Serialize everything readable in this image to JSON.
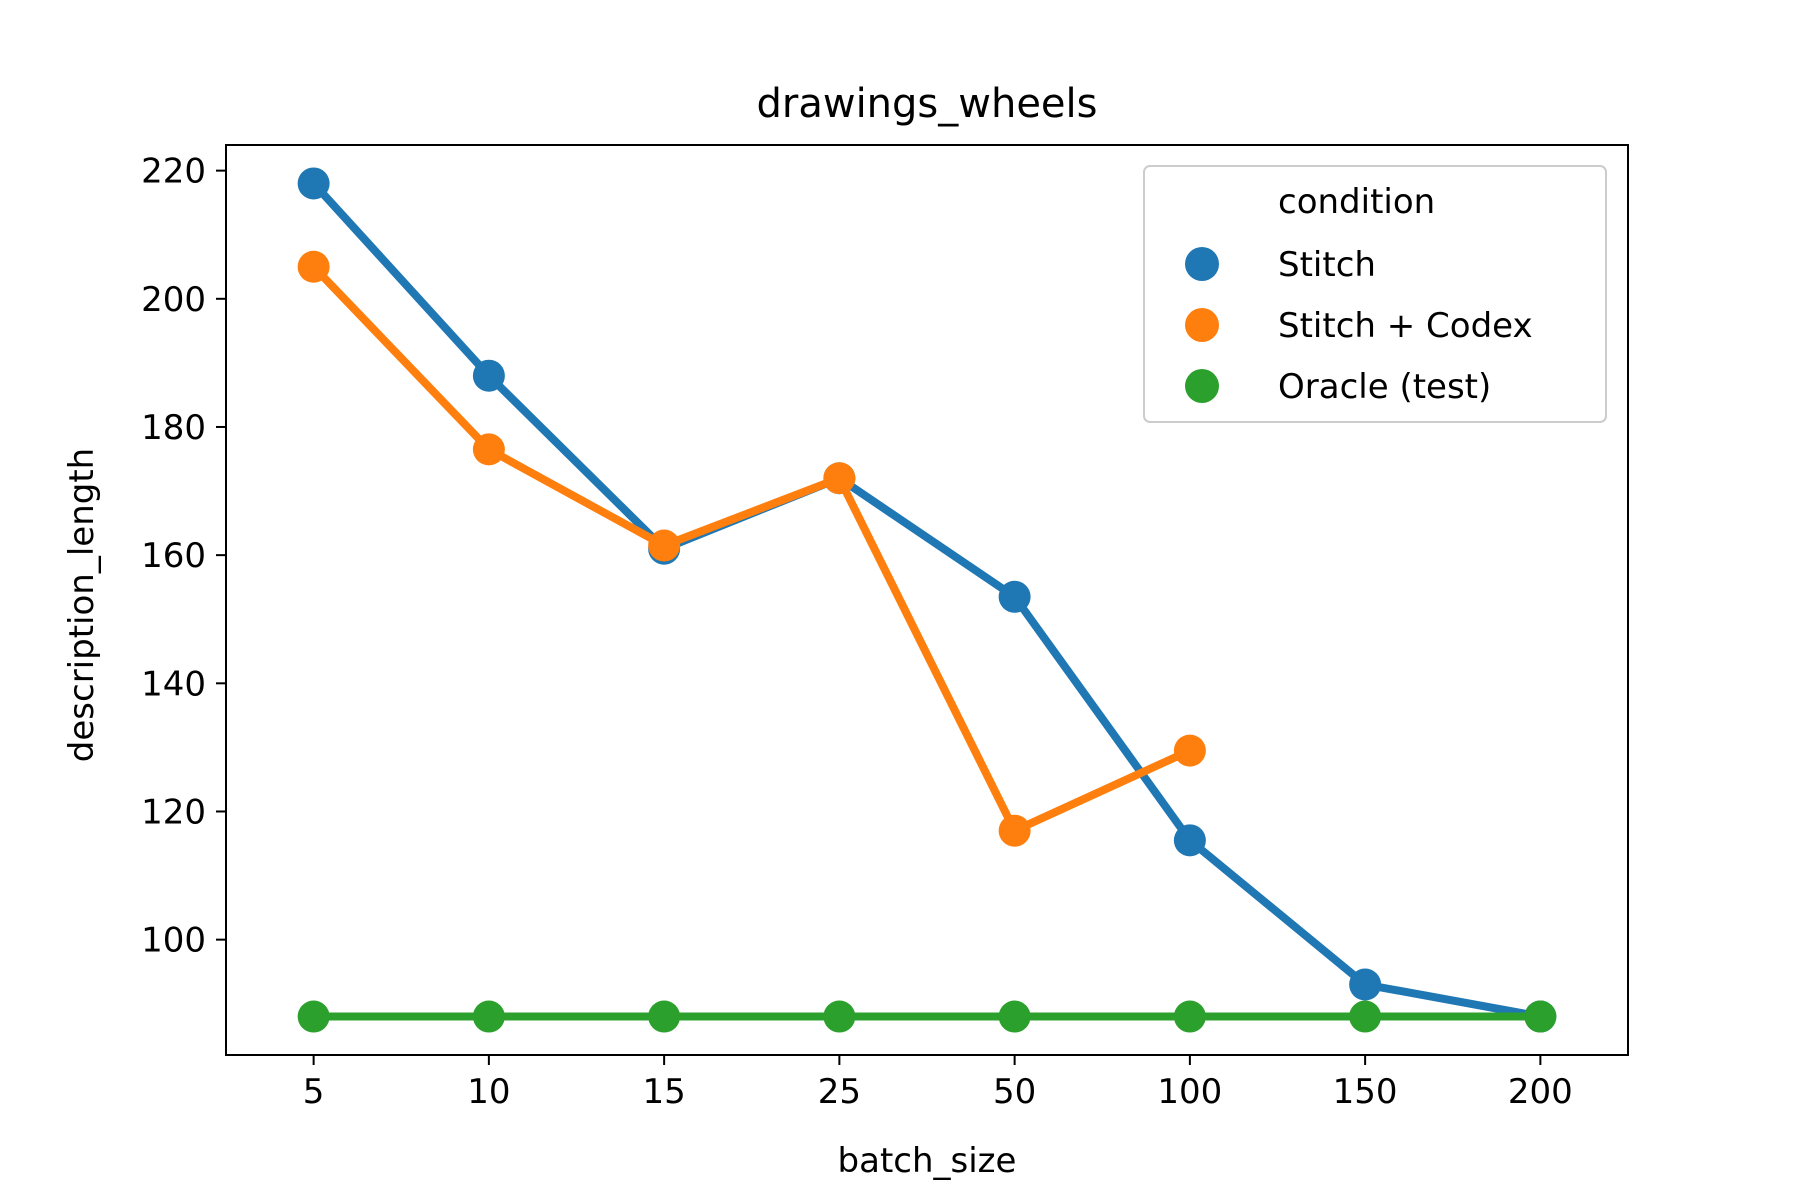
{
  "chart_data": {
    "type": "line",
    "title": "drawings_wheels",
    "xlabel": "batch_size",
    "ylabel": "description_length",
    "categories": [
      "5",
      "10",
      "15",
      "25",
      "50",
      "100",
      "150",
      "200"
    ],
    "ylim": [
      82,
      224
    ],
    "yticks": [
      100,
      120,
      140,
      160,
      180,
      200,
      220
    ],
    "grid": false,
    "legend": {
      "title": "condition",
      "placement": "top-right"
    },
    "series": [
      {
        "name": "Stitch",
        "color": "#1f77b4",
        "values": [
          218,
          188,
          161,
          172,
          153.5,
          115.5,
          93,
          88
        ]
      },
      {
        "name": "Stitch + Codex",
        "color": "#ff7f0e",
        "values": [
          205,
          176.5,
          161.5,
          172,
          117,
          129.5,
          null,
          null
        ]
      },
      {
        "name": "Oracle (test)",
        "color": "#2ca02c",
        "values": [
          88,
          88,
          88,
          88,
          88,
          88,
          88,
          88
        ]
      }
    ]
  }
}
